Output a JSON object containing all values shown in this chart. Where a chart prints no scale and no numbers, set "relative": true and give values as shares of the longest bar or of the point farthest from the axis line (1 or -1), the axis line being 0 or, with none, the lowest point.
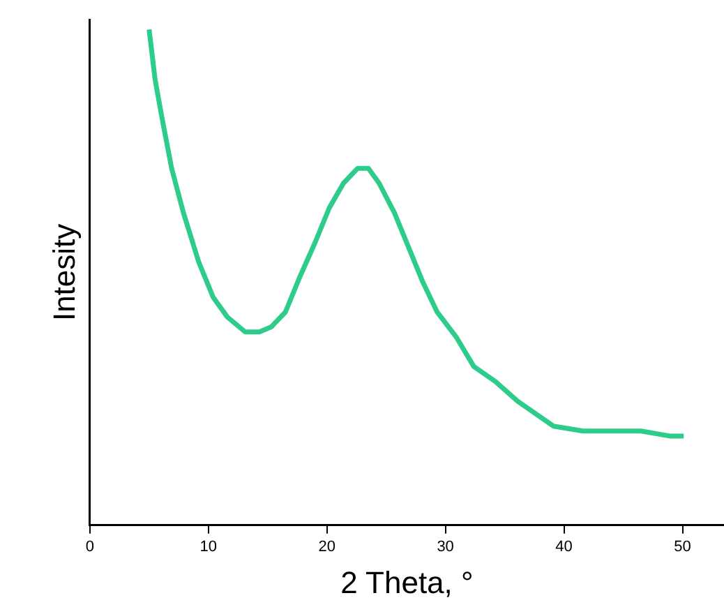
{
  "chart_data": {
    "type": "line",
    "xlabel": "2 Theta, °",
    "ylabel": "Intesity",
    "relative": true,
    "xlim": [
      0,
      53.5
    ],
    "xticks": [
      0,
      10,
      20,
      30,
      40,
      50
    ],
    "grid": false,
    "legend": false,
    "marker": "none",
    "line_style": "solid",
    "series": [
      {
        "color": "#2ecc8a",
        "x": [
          5,
          5.5,
          6.1,
          6.9,
          7.9,
          9.2,
          10.4,
          11.6,
          13.1,
          14.3,
          15.3,
          16.5,
          17.7,
          19.0,
          20.2,
          21.4,
          22.6,
          23.5,
          24.4,
          25.7,
          26.9,
          28.1,
          29.3,
          30.9,
          32.4,
          34.2,
          36.1,
          37.9,
          39.1,
          41.6,
          44.0,
          46.5,
          48.9,
          50.1
        ],
        "values": [
          1.0,
          0.9,
          0.82,
          0.72,
          0.63,
          0.53,
          0.46,
          0.42,
          0.39,
          0.39,
          0.4,
          0.43,
          0.5,
          0.57,
          0.64,
          0.69,
          0.72,
          0.72,
          0.69,
          0.63,
          0.56,
          0.49,
          0.43,
          0.38,
          0.32,
          0.29,
          0.25,
          0.22,
          0.2,
          0.19,
          0.19,
          0.19,
          0.18,
          0.18
        ]
      }
    ]
  }
}
